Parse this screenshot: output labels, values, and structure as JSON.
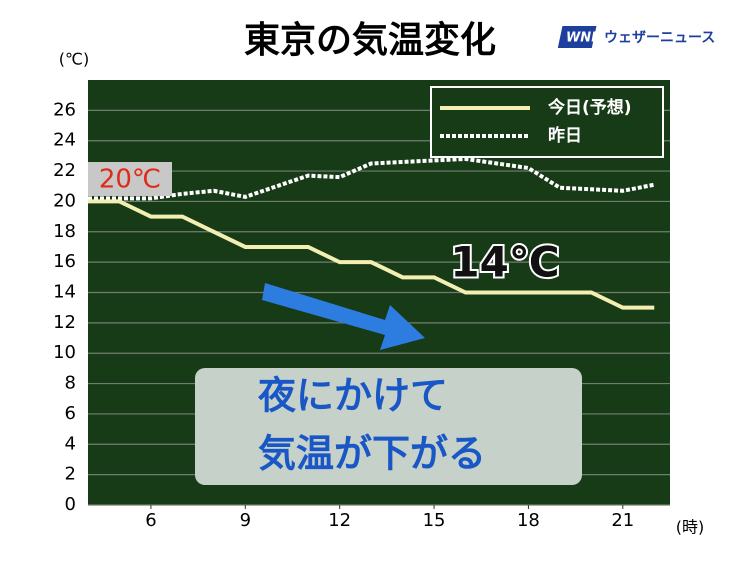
{
  "chart_data": {
    "type": "line",
    "title": "東京の気温変化",
    "y_label": "(℃)",
    "x_label": "(時)",
    "x": [
      4,
      5,
      6,
      7,
      8,
      9,
      10,
      11,
      12,
      13,
      14,
      15,
      16,
      17,
      18,
      19,
      20,
      21,
      22
    ],
    "series": [
      {
        "name": "今日(予想)",
        "color": "#f3efb2",
        "dashed": false,
        "values": [
          20,
          20,
          19,
          19,
          18,
          17,
          17,
          17,
          16,
          16,
          15,
          15,
          14,
          14,
          14,
          14,
          14,
          13,
          13
        ]
      },
      {
        "name": "昨日",
        "color": "#ffffff",
        "dashed": true,
        "values": [
          20.2,
          20.2,
          20.2,
          20.5,
          20.7,
          20.3,
          21,
          21.7,
          21.6,
          22.5,
          22.6,
          22.7,
          22.8,
          22.5,
          22.2,
          20.9,
          20.8,
          20.7,
          21.1
        ]
      }
    ],
    "xlim": [
      4,
      22.5
    ],
    "ylim": [
      0,
      28
    ],
    "xticks": [
      6,
      9,
      12,
      15,
      18,
      21
    ],
    "yticks": [
      0,
      2,
      4,
      6,
      8,
      10,
      12,
      14,
      16,
      18,
      20,
      22,
      24,
      26
    ],
    "grid": true,
    "legend": "top-right",
    "background": "#173a17",
    "annotations": [
      "20℃",
      "14℃",
      "夜にかけて",
      "気温が下がる"
    ]
  },
  "logo": {
    "mark": "WNI",
    "text": "ウェザーニュース"
  }
}
